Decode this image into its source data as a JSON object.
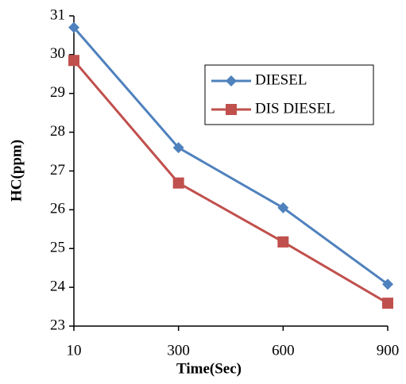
{
  "chart_data": {
    "type": "line",
    "categories": [
      "10",
      "300",
      "600",
      "900"
    ],
    "series": [
      {
        "name": "DIESEL",
        "color": "#4f81bd",
        "marker": "diamond",
        "values": [
          30.7,
          27.6,
          26.05,
          24.08
        ]
      },
      {
        "name": "DIS DIESEL",
        "color": "#c0504d",
        "marker": "square",
        "values": [
          29.85,
          26.69,
          25.17,
          23.59
        ]
      }
    ],
    "ylim": [
      23,
      31
    ],
    "yticks": [
      23,
      24,
      25,
      26,
      27,
      28,
      29,
      30,
      31
    ],
    "x_label": "Time(Sec)",
    "y_label": "HC(ppm)",
    "grid": false,
    "legend": "upper right"
  }
}
